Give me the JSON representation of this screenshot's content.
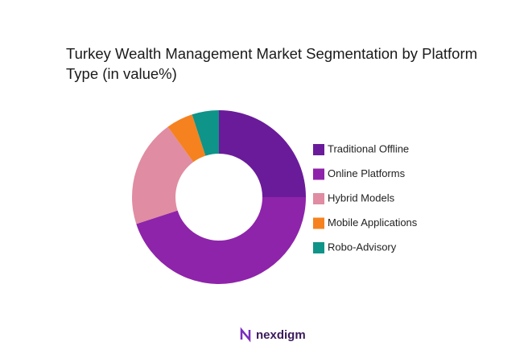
{
  "chart_data": {
    "type": "donut",
    "title": "Turkey Wealth Management Market Segmentation by Platform Type (in value%)",
    "categories": [
      "Traditional Offline",
      "Online Platforms",
      "Hybrid Models",
      "Mobile Applications",
      "Robo-Advisory"
    ],
    "values": [
      25,
      45,
      20,
      5,
      5
    ],
    "colors": [
      "#6a1b9a",
      "#8e24aa",
      "#e08ca2",
      "#f5821f",
      "#0e9488"
    ],
    "legend": "right"
  },
  "logo": "nexdigm"
}
